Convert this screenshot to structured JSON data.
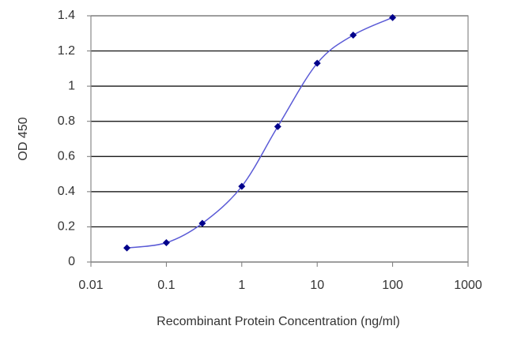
{
  "chart_data": {
    "type": "line",
    "xlabel": "Recombinant Protein Concentration (ng/ml)",
    "ylabel": "OD 450",
    "xscale": "log",
    "x": [
      0.03,
      0.1,
      0.3,
      1,
      3,
      10,
      30,
      100
    ],
    "series": [
      {
        "color": "#00008b",
        "line_color": "#5a5ad6",
        "values": [
          0.08,
          0.11,
          0.22,
          0.43,
          0.77,
          1.13,
          1.29,
          1.39
        ]
      }
    ],
    "xlim": [
      0.01,
      1000
    ],
    "xticks": [
      0.01,
      0.1,
      1,
      10,
      100,
      1000
    ],
    "ylim": [
      0,
      1.4
    ],
    "yticks": [
      0,
      0.2,
      0.4,
      0.6,
      0.8,
      1,
      1.2,
      1.4
    ],
    "grid": true
  }
}
